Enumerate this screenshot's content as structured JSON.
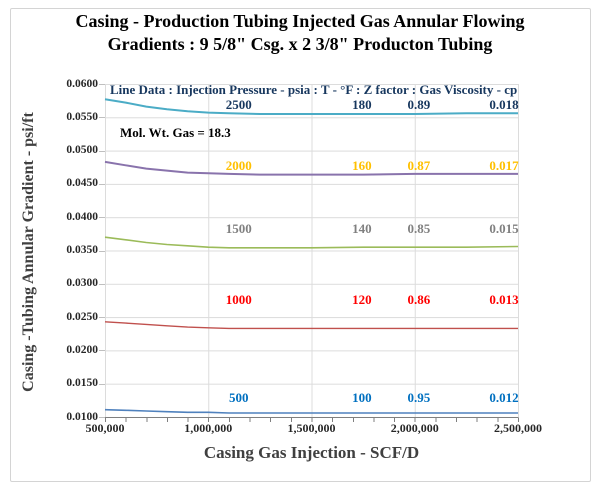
{
  "title": {
    "line1": "Casing - Production Tubing Injected Gas Annular Flowing",
    "line2": "Gradients : 9 5/8\" Csg. x 2 3/8\" Producton Tubing"
  },
  "chart_data": {
    "type": "line",
    "title": "Casing - Production Tubing Injected Gas Annular Flowing Gradients : 9 5/8\" Csg. x 2 3/8\" Producton Tubing",
    "xlabel": "Casing Gas Injection - SCF/D",
    "ylabel": "Casing -Tubing Annular Gradient - psi/ft",
    "legend_header": "Line Data :  Injection Pressure - psia : T - °F : Z factor : Gas Viscosity - cp",
    "legend_color": "#17375e",
    "annotation": "Mol. Wt. Gas = 18.3",
    "grid": true,
    "xlim": [
      500000,
      2500000
    ],
    "ylim": [
      0.01,
      0.06
    ],
    "x_ticks": [
      "500,000",
      "1,000,000",
      "1,500,000",
      "2,000,000",
      "2,500,000"
    ],
    "y_ticks": [
      "0.0600",
      "0.0550",
      "0.0500",
      "0.0450",
      "0.0400",
      "0.0350",
      "0.0300",
      "0.0250",
      "0.0200",
      "0.0150",
      "0.0100"
    ],
    "x": [
      500000,
      600000,
      700000,
      800000,
      900000,
      1000000,
      1100000,
      1250000,
      1500000,
      1750000,
      2000000,
      2250000,
      2500000
    ],
    "series": [
      {
        "name": "Injection pressure 2500 psia",
        "injection_pressure_psia": "2500",
        "temperature_f": "180",
        "z_factor": "0.89",
        "gas_viscosity_cp": "0.018",
        "line_color": "#4bacc6",
        "label_color": "#17375e",
        "values": [
          0.0577,
          0.0572,
          0.0566,
          0.0562,
          0.0559,
          0.0557,
          0.0556,
          0.0555,
          0.0555,
          0.0555,
          0.0555,
          0.0556,
          0.0556
        ]
      },
      {
        "name": "Injection pressure 2000 psia",
        "injection_pressure_psia": "2000",
        "temperature_f": "160",
        "z_factor": "0.87",
        "gas_viscosity_cp": "0.017",
        "line_color": "#8973ac",
        "label_color": "#ffc000",
        "values": [
          0.0483,
          0.0478,
          0.0473,
          0.047,
          0.0467,
          0.0466,
          0.0465,
          0.0464,
          0.0464,
          0.0464,
          0.0465,
          0.0465,
          0.0465
        ]
      },
      {
        "name": "Injection pressure 1500 psia",
        "injection_pressure_psia": "1500",
        "temperature_f": "140",
        "z_factor": "0.85",
        "gas_viscosity_cp": "0.015",
        "line_color": "#9bbb59",
        "label_color": "#808080",
        "values": [
          0.037,
          0.0366,
          0.0362,
          0.0359,
          0.0357,
          0.0355,
          0.0354,
          0.0354,
          0.0354,
          0.0355,
          0.0355,
          0.0355,
          0.0356
        ]
      },
      {
        "name": "Injection pressure 1000 psia",
        "injection_pressure_psia": "1000",
        "temperature_f": "120",
        "z_factor": "0.86",
        "gas_viscosity_cp": "0.013",
        "line_color": "#c0504d",
        "label_color": "#ff0000",
        "values": [
          0.0243,
          0.0241,
          0.0239,
          0.0237,
          0.0235,
          0.0234,
          0.0233,
          0.0233,
          0.0233,
          0.0233,
          0.0233,
          0.0233,
          0.0233
        ]
      },
      {
        "name": "Injection pressure 500 psia",
        "injection_pressure_psia": "500",
        "temperature_f": "100",
        "z_factor": "0.95",
        "gas_viscosity_cp": "0.012",
        "line_color": "#4f81bd",
        "label_color": "#0070c0",
        "values": [
          0.0111,
          0.011,
          0.0109,
          0.0108,
          0.0107,
          0.0107,
          0.0106,
          0.0106,
          0.0106,
          0.0106,
          0.0106,
          0.0106,
          0.0106
        ]
      }
    ]
  }
}
